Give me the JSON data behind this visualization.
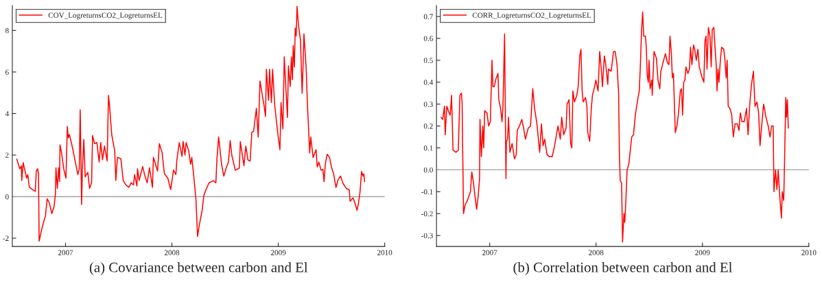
{
  "chart_data": [
    {
      "type": "line",
      "title": "(a) Covariance between carbon and El",
      "legend": "top left",
      "grid": false,
      "xlim": [
        2006.5,
        2010
      ],
      "xticks": [
        2007,
        2008,
        2009,
        2010
      ],
      "ylim": [
        -2.4,
        9.2
      ],
      "yticks": [
        -2,
        0,
        2,
        4,
        6,
        8
      ],
      "ref_lines": [
        {
          "axis": "y",
          "value": 0,
          "color": "#a0a0a0"
        }
      ],
      "series": [
        {
          "name": "COV_LogreturnsCO2_LogreturnsEL",
          "color": "#ff0000",
          "x": [
            2006.542,
            2006.57,
            2006.585,
            2006.589,
            2006.602,
            2006.617,
            2006.634,
            2006.645,
            2006.66,
            2006.703,
            2006.716,
            2006.725,
            2006.738,
            2006.746,
            2006.752,
            2006.778,
            2006.811,
            2006.828,
            2006.849,
            2006.871,
            2006.892,
            2006.905,
            2006.91,
            2006.923,
            2006.935,
            2006.944,
            2006.948,
            2006.961,
            2006.983,
            2007.004,
            2007.017,
            2007.026,
            2007.037,
            2007.069,
            2007.09,
            2007.116,
            2007.129,
            2007.138,
            2007.151,
            2007.159,
            2007.172,
            2007.185,
            2007.209,
            2007.226,
            2007.245,
            2007.254,
            2007.273,
            2007.295,
            2007.316,
            2007.331,
            2007.348,
            2007.366,
            2007.391,
            2007.404,
            2007.413,
            2007.434,
            2007.462,
            2007.473,
            2007.488,
            2007.52,
            2007.542,
            2007.568,
            2007.596,
            2007.617,
            2007.639,
            2007.649,
            2007.671,
            2007.677,
            2007.692,
            2007.725,
            2007.746,
            2007.768,
            2007.789,
            2007.817,
            2007.826,
            2007.865,
            2007.882,
            2007.908,
            2007.929,
            2007.961,
            2007.989,
            2008.015,
            2008.037,
            2008.047,
            2008.069,
            2008.095,
            2008.105,
            2008.123,
            2008.133,
            2008.157,
            2008.176,
            2008.187,
            2008.204,
            2008.226,
            2008.241,
            2008.256,
            2008.284,
            2008.301,
            2008.316,
            2008.348,
            2008.391,
            2008.413,
            2008.424,
            2008.439,
            2008.467,
            2008.488,
            2008.51,
            2008.531,
            2008.548,
            2008.563,
            2008.596,
            2008.634,
            2008.643,
            2008.677,
            2008.695,
            2008.714,
            2008.735,
            2008.751,
            2008.768,
            2008.794,
            2008.811,
            2008.828,
            2008.843,
            2008.865,
            2008.88,
            2008.888,
            2008.908,
            2008.918,
            2008.935,
            2008.946,
            2008.966,
            2008.994,
            2009.015,
            2009.026,
            2009.043,
            2009.056,
            2009.086,
            2009.095,
            2009.112,
            2009.123,
            2009.133,
            2009.14,
            2009.151,
            2009.159,
            2009.168,
            2009.176,
            2009.189,
            2009.209,
            2009.224,
            2009.232,
            2009.241,
            2009.262,
            2009.273,
            2009.288,
            2009.295,
            2009.305,
            2009.327,
            2009.355,
            2009.366,
            2009.381,
            2009.402,
            2009.419,
            2009.43,
            2009.441,
            2009.46,
            2009.482,
            2009.499,
            2009.52,
            2009.542,
            2009.563,
            2009.585,
            2009.606,
            2009.639,
            2009.667,
            2009.675,
            2009.703,
            2009.725,
            2009.74,
            2009.753,
            2009.768,
            2009.783,
            2009.796,
            2009.804,
            2009.811
          ],
          "values": [
            1.81,
            1.34,
            1.48,
            0.78,
            1.64,
            1.28,
            0.89,
            1.06,
            0.45,
            0.29,
            0.25,
            1.23,
            1.34,
            1.11,
            -2.14,
            -1.53,
            -0.93,
            -0.1,
            -0.32,
            -0.82,
            -0.49,
            0.12,
            1.39,
            0.4,
            1.39,
            0.73,
            2.49,
            2.16,
            1.34,
            0.89,
            3.38,
            2.83,
            2.99,
            2.27,
            1.72,
            1.06,
            1.34,
            4.18,
            -0.38,
            1.39,
            2.75,
            0.95,
            1.17,
            0.4,
            0.67,
            2.94,
            2.55,
            2.6,
            1.67,
            2.6,
            1.78,
            2.44,
            1.72,
            4.87,
            4.43,
            2.99,
            2.22,
            0.78,
            1.89,
            1.83,
            0.78,
            0.56,
            0.45,
            0.67,
            0.56,
            1.06,
            0.51,
            1.34,
            0.78,
            1.45,
            1.0,
            0.67,
            1.39,
            0.45,
            1.89,
            1.23,
            2.55,
            2.11,
            1.11,
            0.89,
            0.34,
            1.28,
            1.06,
            1.78,
            2.6,
            1.94,
            2.66,
            2.0,
            2.6,
            2.22,
            1.56,
            1.89,
            1.06,
            -0.15,
            -1.92,
            -1.42,
            -0.65,
            0.07,
            0.28,
            0.66,
            0.77,
            0.66,
            1.88,
            2.87,
            1.55,
            0.99,
            1.38,
            1.66,
            2.7,
            1.99,
            1.27,
            1.38,
            2.65,
            1.49,
            2.43,
            1.77,
            1.71,
            3.09,
            3.15,
            4.25,
            2.87,
            5.57,
            5.08,
            4.42,
            3.86,
            6.13,
            4.64,
            6.13,
            4.53,
            6.13,
            4.42,
            3.09,
            2.26,
            4.53,
            3.26,
            6.73,
            3.81,
            6.29,
            5.3,
            6.73,
            5.63,
            7.28,
            6.24,
            8.11,
            7.73,
            9.16,
            8.28,
            7.51,
            4.97,
            6.18,
            7.84,
            6.18,
            4.53,
            2.87,
            2.1,
            2.87,
            1.88,
            2.26,
            1.43,
            1.66,
            1.27,
            1.32,
            0.72,
            1.55,
            2.04,
            1.88,
            1.43,
            1.1,
            0.44,
            0.83,
            0.99,
            0.66,
            0.39,
            0.33,
            -0.22,
            -0.06,
            -0.39,
            -0.66,
            -0.33,
            0.22,
            1.21,
            0.99,
            1.1,
            0.72
          ]
        }
      ]
    },
    {
      "type": "line",
      "title": "(b) Correlation between carbon and El",
      "legend": "top left",
      "grid": false,
      "xlim": [
        2006.5,
        2010
      ],
      "xticks": [
        2007,
        2008,
        2009,
        2010
      ],
      "ylim": [
        -0.35,
        0.75
      ],
      "yticks": [
        {
          "value": -0.3,
          "label": "-0.3"
        },
        {
          "value": -0.2,
          "label": "-0.2"
        },
        {
          "value": -0.1,
          "label": "-0.1"
        },
        {
          "value": 0,
          "label": "0.0"
        },
        0.1,
        0.2,
        0.3,
        0.4,
        0.5,
        0.6,
        0.7
      ],
      "ref_lines": [
        {
          "axis": "y",
          "value": 0,
          "color": "#a0a0a0"
        }
      ],
      "series": [
        {
          "name": "CORR_LogreturnsCO2_LogreturnsEL",
          "color": "#ff0000",
          "x": [
            2006.543,
            2006.558,
            2006.569,
            2006.575,
            2006.582,
            2006.597,
            2006.619,
            2006.629,
            2006.642,
            2006.655,
            2006.683,
            2006.705,
            2006.72,
            2006.735,
            2006.741,
            2006.754,
            2006.769,
            2006.791,
            2006.819,
            2006.832,
            2006.845,
            2006.862,
            2006.877,
            2006.892,
            2006.905,
            2006.909,
            2006.922,
            2006.935,
            2006.944,
            2006.953,
            2006.974,
            2006.991,
            2007.006,
            2007.022,
            2007.03,
            2007.043,
            2007.056,
            2007.078,
            2007.086,
            2007.103,
            2007.116,
            2007.125,
            2007.14,
            2007.153,
            2007.157,
            2007.168,
            2007.177,
            2007.19,
            2007.211,
            2007.233,
            2007.25,
            2007.259,
            2007.28,
            2007.302,
            2007.319,
            2007.336,
            2007.362,
            2007.384,
            2007.405,
            2007.422,
            2007.444,
            2007.47,
            2007.487,
            2007.502,
            2007.517,
            2007.539,
            2007.56,
            2007.588,
            2007.61,
            2007.642,
            2007.664,
            2007.677,
            2007.696,
            2007.718,
            2007.728,
            2007.746,
            2007.761,
            2007.772,
            2007.782,
            2007.797,
            2007.819,
            2007.832,
            2007.847,
            2007.858,
            2007.869,
            2007.879,
            2007.901,
            2007.914,
            2007.922,
            2007.94,
            2007.955,
            2007.966,
            2007.987,
            2007.998,
            2008.019,
            2008.034,
            2008.047,
            2008.06,
            2008.078,
            2008.091,
            2008.11,
            2008.116,
            2008.142,
            2008.164,
            2008.18,
            2008.197,
            2008.212,
            2008.219,
            2008.227,
            2008.24,
            2008.249,
            2008.262,
            2008.27,
            2008.281,
            2008.292,
            2008.309,
            2008.322,
            2008.335,
            2008.352,
            2008.369,
            2008.391,
            2008.406,
            2008.416,
            2008.427,
            2008.438,
            2008.448,
            2008.464,
            2008.472,
            2008.481,
            2008.491,
            2008.498,
            2008.508,
            2008.524,
            2008.528,
            2008.545,
            2008.567,
            2008.582,
            2008.599,
            2008.609,
            2008.635,
            2008.652,
            2008.67,
            2008.685,
            2008.695,
            2008.708,
            2008.717,
            2008.727,
            2008.745,
            2008.76,
            2008.773,
            2008.792,
            2008.803,
            2008.813,
            2008.824,
            2008.835,
            2008.845,
            2008.863,
            2008.878,
            2008.888,
            2008.901,
            2008.916,
            2008.927,
            2008.942,
            2008.957,
            2008.97,
            2008.991,
            2009.013,
            2009.024,
            2009.034,
            2009.043,
            2009.056,
            2009.071,
            2009.082,
            2009.092,
            2009.107,
            2009.118,
            2009.129,
            2009.137,
            2009.146,
            2009.155,
            2009.167,
            2009.18,
            2009.2,
            2009.21,
            2009.223,
            2009.232,
            2009.242,
            2009.258,
            2009.275,
            2009.29,
            2009.307,
            2009.328,
            2009.343,
            2009.356,
            2009.371,
            2009.393,
            2009.414,
            2009.429,
            2009.446,
            2009.461,
            2009.479,
            2009.494,
            2009.511,
            2009.528,
            2009.541,
            2009.558,
            2009.575,
            2009.597,
            2009.618,
            2009.635,
            2009.65,
            2009.665,
            2009.672,
            2009.687,
            2009.7,
            2009.712,
            2009.725,
            2009.736,
            2009.742,
            2009.751,
            2009.764,
            2009.773,
            2009.783,
            2009.79,
            2009.798,
            2009.807
          ],
          "values": [
            0.24,
            0.23,
            0.27,
            0.29,
            0.16,
            0.29,
            0.26,
            0.25,
            0.34,
            0.09,
            0.08,
            0.09,
            0.34,
            0.35,
            0.3,
            -0.2,
            -0.16,
            -0.14,
            -0.1,
            -0.01,
            -0.05,
            -0.12,
            -0.18,
            -0.12,
            -0.04,
            0.23,
            0.06,
            0.2,
            0.1,
            0.27,
            0.26,
            0.2,
            0.22,
            0.5,
            0.38,
            0.38,
            0.41,
            0.44,
            0.32,
            0.28,
            0.22,
            0.29,
            0.62,
            -0.04,
            0.13,
            0.14,
            0.24,
            0.08,
            0.12,
            0.05,
            0.07,
            0.18,
            0.2,
            0.23,
            0.19,
            0.14,
            0.19,
            0.2,
            0.37,
            0.28,
            0.21,
            0.08,
            0.21,
            0.11,
            0.14,
            0.07,
            0.06,
            0.06,
            0.11,
            0.2,
            0.14,
            0.24,
            0.16,
            0.19,
            0.3,
            0.32,
            0.12,
            0.1,
            0.36,
            0.31,
            0.34,
            0.38,
            0.52,
            0.55,
            0.36,
            0.31,
            0.33,
            0.29,
            0.17,
            0.13,
            0.28,
            0.34,
            0.38,
            0.41,
            0.36,
            0.54,
            0.47,
            0.38,
            0.52,
            0.48,
            0.39,
            0.46,
            0.45,
            0.54,
            0.54,
            0.48,
            0.35,
            0.08,
            -0.05,
            -0.06,
            -0.33,
            -0.2,
            -0.24,
            -0.13,
            0.0,
            0.03,
            0.09,
            0.15,
            0.16,
            0.25,
            0.32,
            0.36,
            0.47,
            0.63,
            0.72,
            0.61,
            0.61,
            0.56,
            0.43,
            0.4,
            0.5,
            0.37,
            0.41,
            0.34,
            0.54,
            0.51,
            0.41,
            0.37,
            0.45,
            0.5,
            0.53,
            0.49,
            0.48,
            0.61,
            0.53,
            0.42,
            0.44,
            0.17,
            0.2,
            0.25,
            0.36,
            0.37,
            0.25,
            0.4,
            0.41,
            0.47,
            0.44,
            0.46,
            0.56,
            0.48,
            0.57,
            0.55,
            0.5,
            0.55,
            0.47,
            0.43,
            0.4,
            0.59,
            0.61,
            0.46,
            0.65,
            0.61,
            0.47,
            0.64,
            0.65,
            0.56,
            0.48,
            0.36,
            0.46,
            0.4,
            0.49,
            0.56,
            0.55,
            0.51,
            0.42,
            0.5,
            0.29,
            0.28,
            0.25,
            0.15,
            0.21,
            0.21,
            0.18,
            0.26,
            0.22,
            0.22,
            0.28,
            0.16,
            0.31,
            0.39,
            0.45,
            0.29,
            0.31,
            0.26,
            0.11,
            0.21,
            0.3,
            0.24,
            0.2,
            0.15,
            0.2,
            0.2,
            -0.1,
            0.0,
            -0.09,
            0.0,
            -0.11,
            -0.18,
            -0.22,
            -0.1,
            -0.14,
            0.07,
            0.33,
            0.24,
            0.32,
            0.19
          ]
        }
      ]
    }
  ]
}
